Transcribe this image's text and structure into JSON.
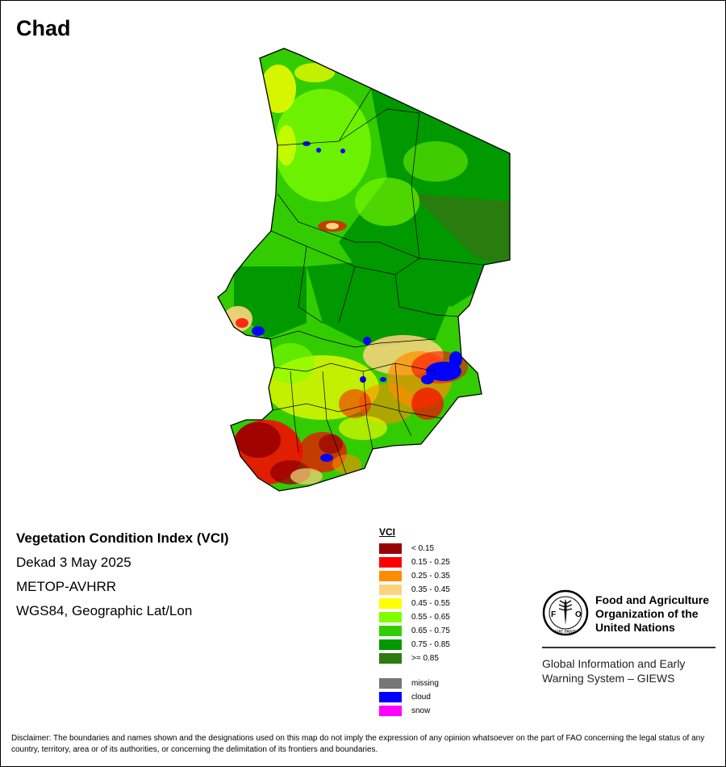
{
  "title": "Chad",
  "info": {
    "line1": "Vegetation Condition Index (VCI)",
    "line2": "Dekad 3 May 2025",
    "line3": "METOP-AVHRR",
    "line4": "WGS84, Geographic Lat/Lon"
  },
  "legend": {
    "title": "VCI",
    "classes": [
      {
        "label": "< 0.15",
        "color": "#990000"
      },
      {
        "label": "0.15 - 0.25",
        "color": "#ff0000"
      },
      {
        "label": "0.25 - 0.35",
        "color": "#ff8c00"
      },
      {
        "label": "0.35 - 0.45",
        "color": "#ffd27f"
      },
      {
        "label": "0.45 - 0.55",
        "color": "#ffff00"
      },
      {
        "label": "0.55 - 0.65",
        "color": "#80ff00"
      },
      {
        "label": "0.65 - 0.75",
        "color": "#33cc00"
      },
      {
        "label": "0.75 - 0.85",
        "color": "#009900"
      },
      {
        "label": ">= 0.85",
        "color": "#2d7a0f"
      }
    ],
    "other": [
      {
        "label": "missing",
        "color": "#777777"
      },
      {
        "label": "cloud",
        "color": "#0000ff"
      },
      {
        "label": "snow",
        "color": "#ff00ff"
      }
    ]
  },
  "fao": {
    "logo_letters": "FAO",
    "logo_motto": "FIAT PANIS",
    "name_line1": "Food and Agriculture",
    "name_line2": "Organization of the",
    "name_line3": "United Nations",
    "system_line1": "Global Information and Early",
    "system_line2": "Warning System – GIEWS"
  },
  "disclaimer": "Disclaimer: The boundaries and names shown and the designations used on this map do not imply the expression of any opinion whatsoever on the part of FAO concerning the legal status of any country, territory, area or of its authorities, or concerning the delimitation of its frontiers and boundaries."
}
